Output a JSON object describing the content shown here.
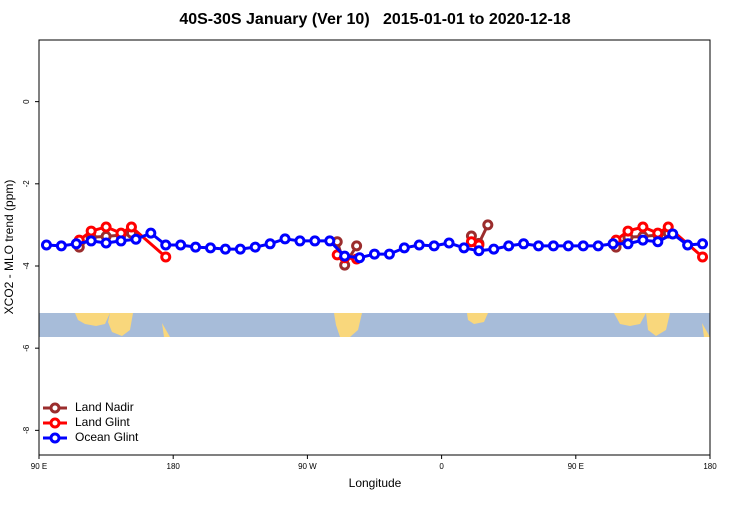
{
  "chart_data": {
    "type": "line",
    "title": "40S-30S January (Ver 10)   2015-01-01 to 2020-12-18",
    "xlabel": "Longitude",
    "ylabel": "XCO2 - MLO trend (ppm)",
    "xlim": [
      90,
      540
    ],
    "ylim": [
      -8.6,
      1.5
    ],
    "xticks": [
      {
        "value": 90,
        "label": "90 E"
      },
      180,
      {
        "value": 270,
        "label": "90 W"
      },
      {
        "value": 360,
        "label": "0"
      },
      {
        "value": 450,
        "label": "90 E"
      },
      {
        "value": 540,
        "label": "180"
      }
    ],
    "yticks": [
      0,
      -2,
      -4,
      -6,
      -8
    ],
    "legend": "bottom-left",
    "series": [
      {
        "name": "Land Nadir",
        "color": "#9b2d2d",
        "x": [
          117,
          125,
          135,
          145,
          152,
          null,
          290,
          295,
          303,
          null,
          380,
          385,
          391,
          null,
          477,
          485,
          495,
          505,
          512
        ],
        "values": [
          -3.54,
          -3.3,
          -3.28,
          -3.25,
          -3.2,
          null,
          -3.41,
          -3.98,
          -3.51,
          null,
          -3.27,
          -3.45,
          -3.0,
          null,
          -3.54,
          -3.3,
          -3.28,
          -3.25,
          -3.2
        ]
      },
      {
        "name": "Land Glint",
        "color": "#ff0000",
        "x": [
          117,
          125,
          135,
          145,
          152,
          175,
          null,
          290,
          295,
          303,
          null,
          380,
          385,
          null,
          477,
          485,
          495,
          505,
          512,
          535
        ],
        "values": [
          -3.37,
          -3.15,
          -3.05,
          -3.2,
          -3.05,
          -3.78,
          null,
          -3.73,
          -3.8,
          -3.83,
          null,
          -3.41,
          -3.49,
          null,
          -3.37,
          -3.15,
          -3.05,
          -3.2,
          -3.05,
          -3.78
        ]
      },
      {
        "name": "Ocean Glint",
        "color": "#0000ff",
        "x": [
          95,
          105,
          115,
          125,
          135,
          145,
          155,
          165,
          175,
          185,
          195,
          205,
          215,
          225,
          235,
          245,
          255,
          265,
          275,
          285,
          295,
          305,
          315,
          325,
          335,
          345,
          355,
          365,
          375,
          385,
          395,
          405,
          415,
          425,
          435,
          445,
          455,
          465,
          475,
          485,
          495,
          505,
          515,
          525,
          535
        ],
        "values": [
          -3.49,
          -3.51,
          -3.46,
          -3.39,
          -3.44,
          -3.39,
          -3.35,
          -3.2,
          -3.49,
          -3.49,
          -3.54,
          -3.56,
          -3.59,
          -3.59,
          -3.54,
          -3.46,
          -3.34,
          -3.39,
          -3.39,
          -3.39,
          -3.76,
          -3.8,
          -3.71,
          -3.71,
          -3.56,
          -3.49,
          -3.51,
          -3.44,
          -3.56,
          -3.63,
          -3.59,
          -3.51,
          -3.46,
          -3.51,
          -3.51,
          -3.51,
          -3.51,
          -3.51,
          -3.46,
          -3.46,
          -3.37,
          -3.41,
          -3.22,
          -3.49,
          -3.46
        ]
      }
    ]
  }
}
